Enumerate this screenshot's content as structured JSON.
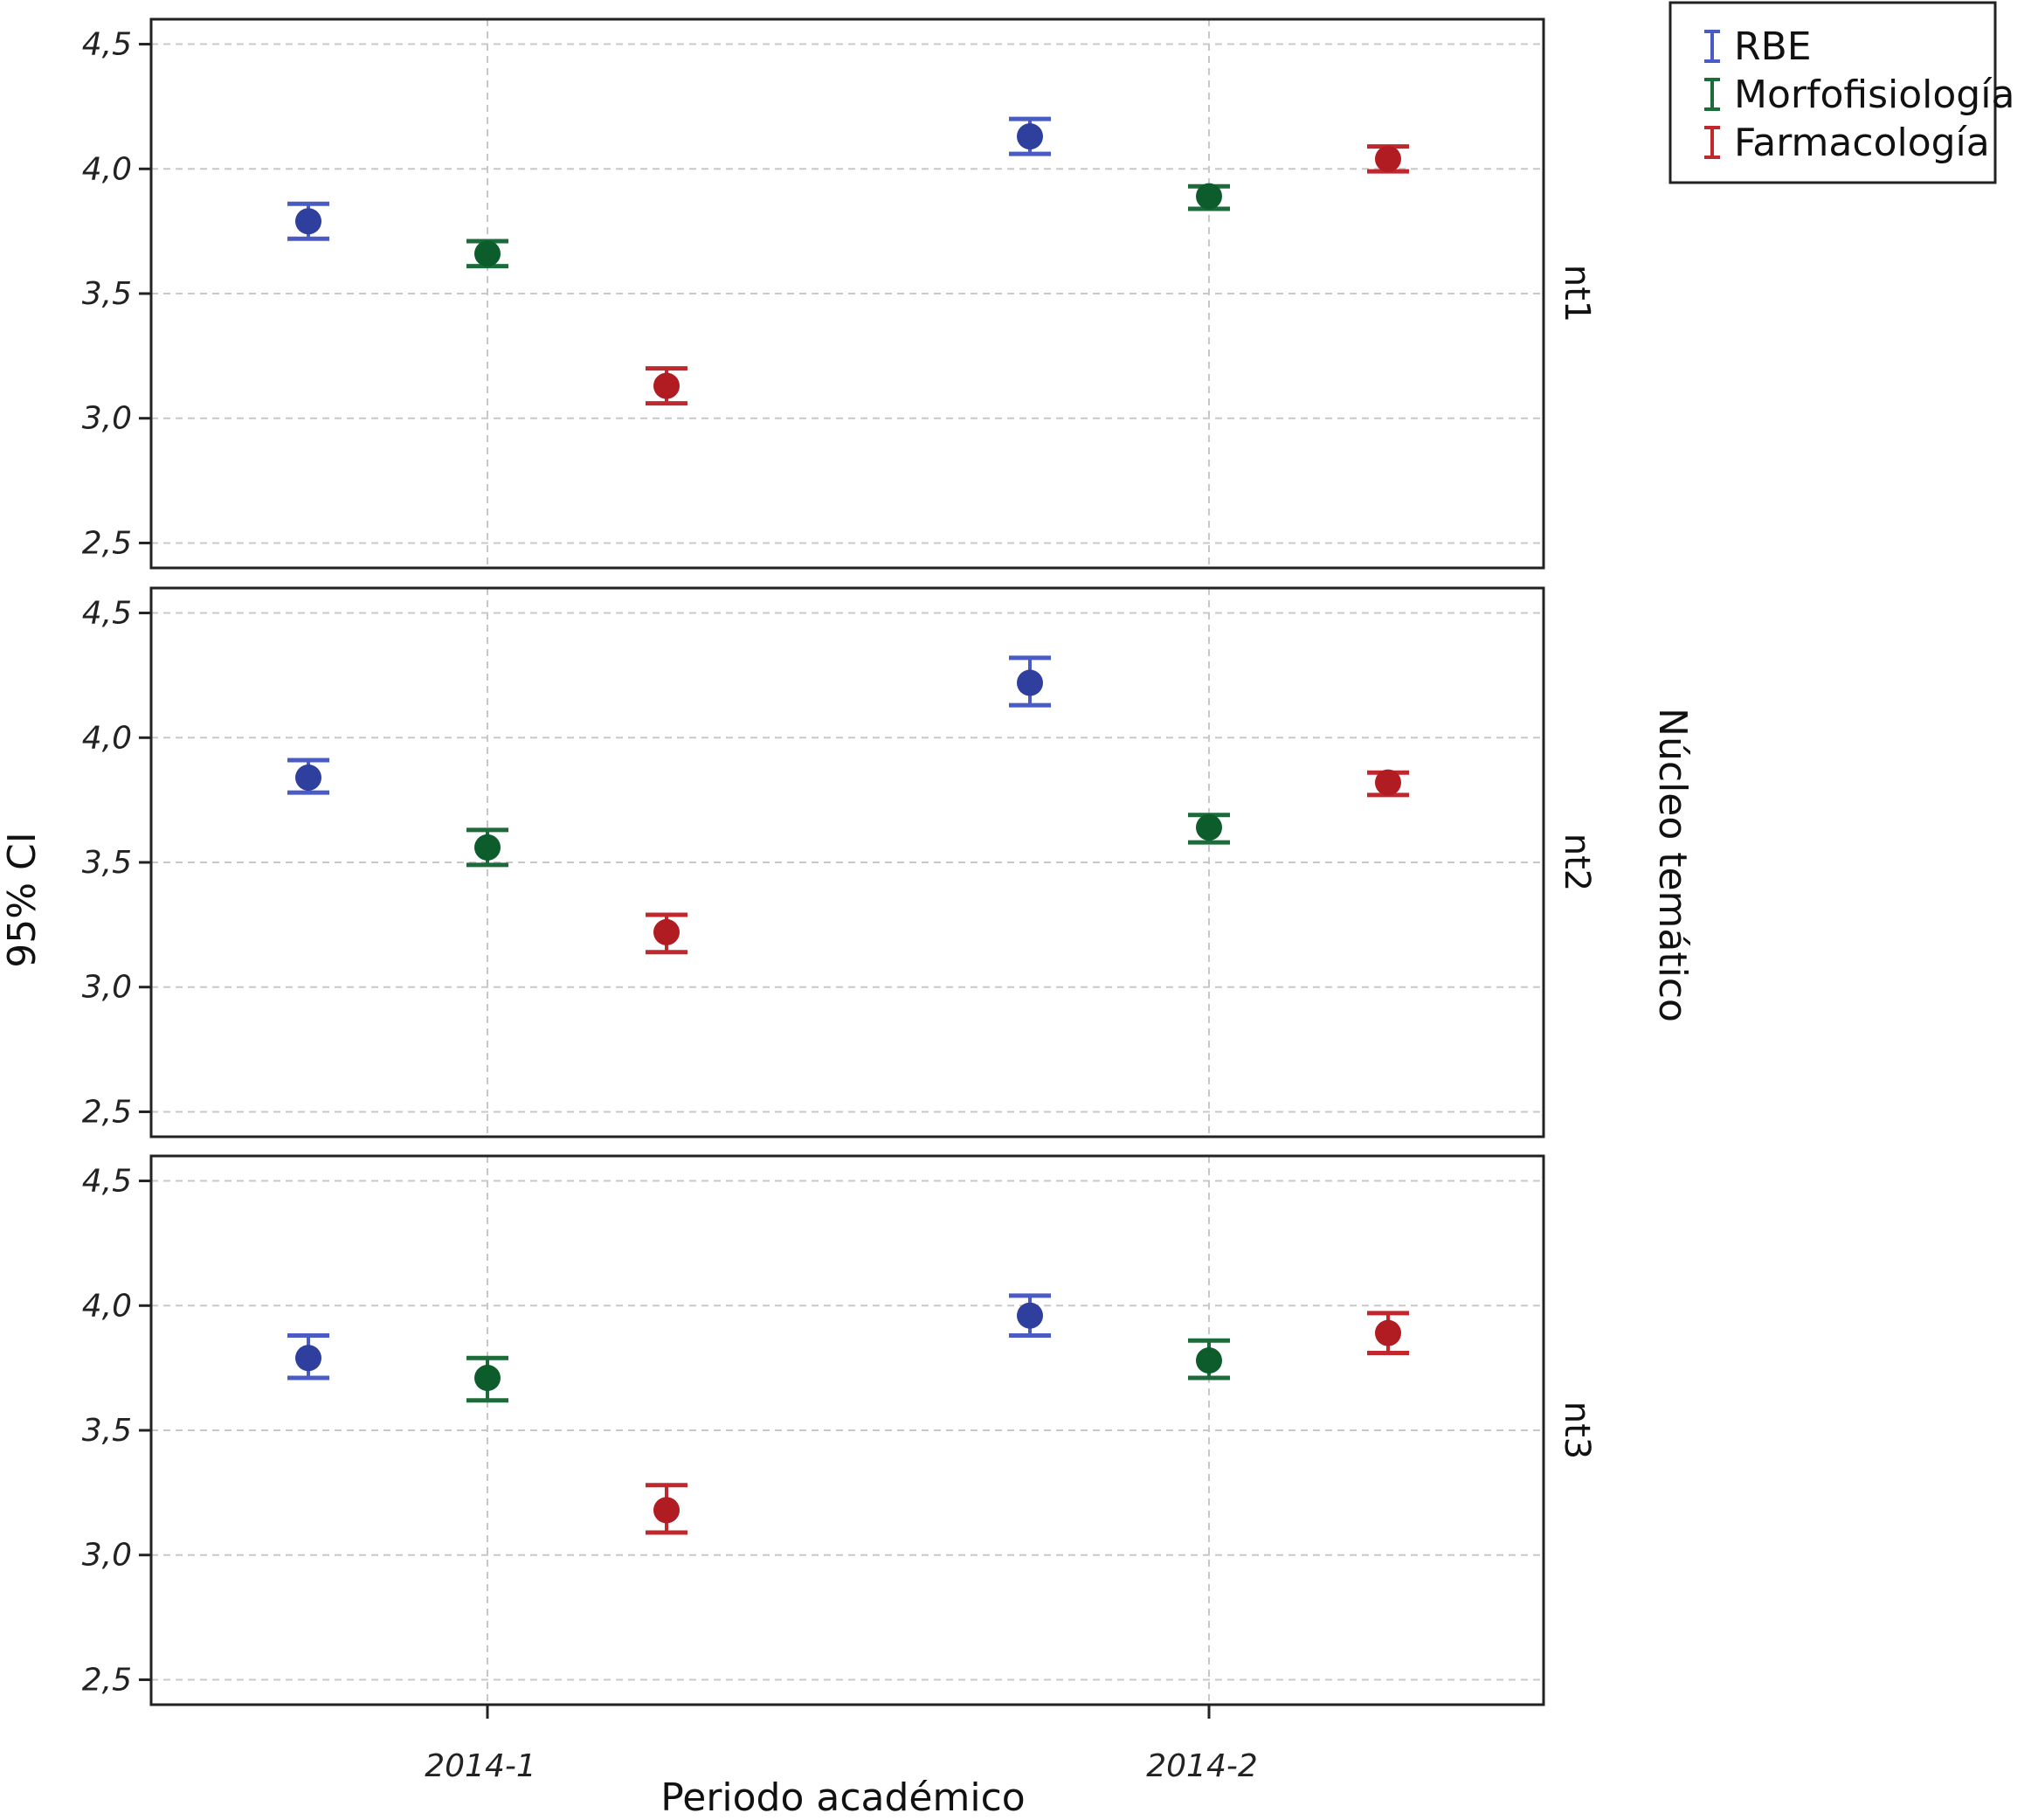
{
  "chart_data": {
    "type": "scatter",
    "subtype": "error-bar-faceted",
    "xlabel": "Periodo académico",
    "ylabel": "95% CI",
    "facet_label": "Núcleo temático",
    "categories": [
      "2014-1",
      "2014-2"
    ],
    "ylim": [
      2.4,
      4.6
    ],
    "yticks": [
      "2,5",
      "3,0",
      "3,5",
      "4,0",
      "4,5"
    ],
    "ytick_values": [
      2.5,
      3.0,
      3.5,
      4.0,
      4.5
    ],
    "grid": true,
    "legend_position": "top-right",
    "series": [
      {
        "name": "RBE",
        "color": "#2e3f9e",
        "line_color": "#4a5cc4"
      },
      {
        "name": "Morfofisiología",
        "color": "#0d5c2c",
        "line_color": "#1d6b3a"
      },
      {
        "name": "Farmacología",
        "color": "#b01c22",
        "line_color": "#c0282e"
      }
    ],
    "panels": [
      {
        "label": "nt1",
        "points": [
          {
            "series": 0,
            "category": 0,
            "mean": 3.79,
            "low": 3.72,
            "high": 3.86
          },
          {
            "series": 1,
            "category": 0,
            "mean": 3.66,
            "low": 3.61,
            "high": 3.71
          },
          {
            "series": 2,
            "category": 0,
            "mean": 3.13,
            "low": 3.06,
            "high": 3.2
          },
          {
            "series": 0,
            "category": 1,
            "mean": 4.13,
            "low": 4.06,
            "high": 4.2
          },
          {
            "series": 1,
            "category": 1,
            "mean": 3.89,
            "low": 3.84,
            "high": 3.93
          },
          {
            "series": 2,
            "category": 1,
            "mean": 4.04,
            "low": 3.99,
            "high": 4.09
          }
        ]
      },
      {
        "label": "nt2",
        "points": [
          {
            "series": 0,
            "category": 0,
            "mean": 3.84,
            "low": 3.78,
            "high": 3.91
          },
          {
            "series": 1,
            "category": 0,
            "mean": 3.56,
            "low": 3.49,
            "high": 3.63
          },
          {
            "series": 2,
            "category": 0,
            "mean": 3.22,
            "low": 3.14,
            "high": 3.29
          },
          {
            "series": 0,
            "category": 1,
            "mean": 4.22,
            "low": 4.13,
            "high": 4.32
          },
          {
            "series": 1,
            "category": 1,
            "mean": 3.64,
            "low": 3.58,
            "high": 3.69
          },
          {
            "series": 2,
            "category": 1,
            "mean": 3.82,
            "low": 3.77,
            "high": 3.86
          }
        ]
      },
      {
        "label": "nt3",
        "points": [
          {
            "series": 0,
            "category": 0,
            "mean": 3.79,
            "low": 3.71,
            "high": 3.88
          },
          {
            "series": 1,
            "category": 0,
            "mean": 3.71,
            "low": 3.62,
            "high": 3.79
          },
          {
            "series": 2,
            "category": 0,
            "mean": 3.18,
            "low": 3.09,
            "high": 3.28
          },
          {
            "series": 0,
            "category": 1,
            "mean": 3.96,
            "low": 3.88,
            "high": 4.04
          },
          {
            "series": 1,
            "category": 1,
            "mean": 3.78,
            "low": 3.71,
            "high": 3.86
          },
          {
            "series": 2,
            "category": 1,
            "mean": 3.89,
            "low": 3.81,
            "high": 3.97
          }
        ]
      }
    ]
  }
}
